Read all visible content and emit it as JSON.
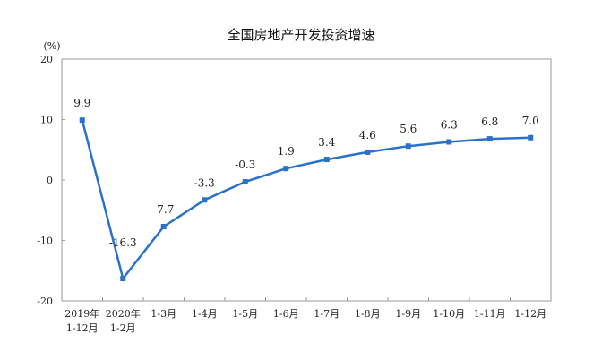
{
  "chart_data": {
    "type": "line",
    "title": "全国房地产开发投资增速",
    "unit_label": "(%)",
    "ylim": [
      -20,
      20
    ],
    "yticks": [
      20,
      10,
      0,
      -10,
      -20
    ],
    "grid": false,
    "categories": [
      [
        "2019年",
        "1-12月"
      ],
      [
        "2020年",
        "1-2月"
      ],
      [
        "1-3月"
      ],
      [
        "1-4月"
      ],
      [
        "1-5月"
      ],
      [
        "1-6月"
      ],
      [
        "1-7月"
      ],
      [
        "1-8月"
      ],
      [
        "1-9月"
      ],
      [
        "1-10月"
      ],
      [
        "1-11月"
      ],
      [
        "1-12月"
      ]
    ],
    "series": [
      {
        "values": [
          9.9,
          -16.3,
          -7.7,
          -3.3,
          -0.3,
          1.9,
          3.4,
          4.6,
          5.6,
          6.3,
          6.8,
          7.0
        ],
        "labels": [
          "9.9",
          "-16.3",
          "-7.7",
          "-3.3",
          "-0.3",
          "1.9",
          "3.4",
          "4.6",
          "5.6",
          "6.3",
          "6.8",
          "7.0"
        ],
        "color": "#2a72c9"
      }
    ]
  }
}
